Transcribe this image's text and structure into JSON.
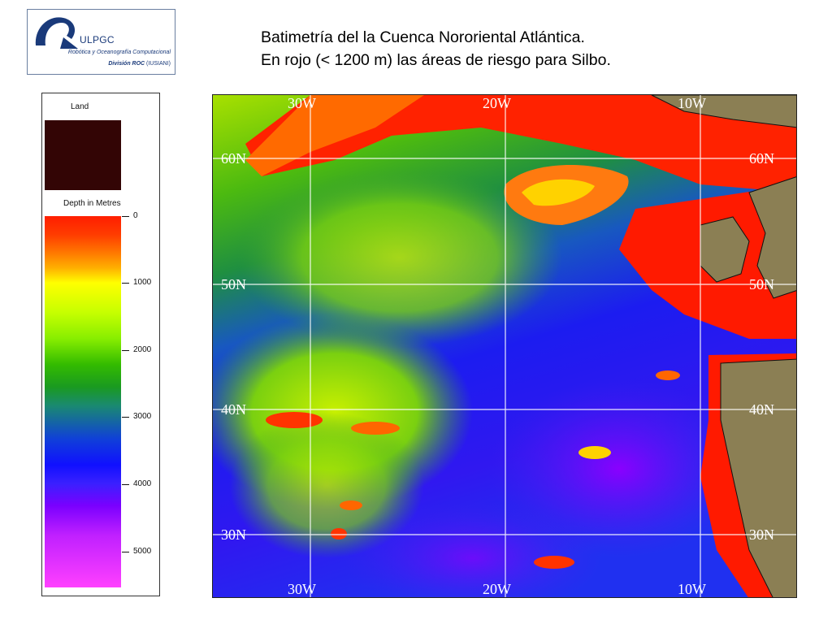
{
  "logo": {
    "name": "ULPGC",
    "subtitle": "Robótica y Oceanografía Computacional",
    "division_bold": "División ROC",
    "division_rest": " (IUSIANI)"
  },
  "title": {
    "line1": "Batimetría del la Cuenca Nororiental Atlántica.",
    "line2": "En rojo (< 1200 m) las áreas de riesgo para Silbo."
  },
  "legend": {
    "land_label": "Land",
    "depth_label": "Depth in Metres",
    "land_color": "#330505",
    "ticks": [
      "0",
      "1000",
      "2000",
      "3000",
      "4000",
      "5000"
    ]
  },
  "map": {
    "longitude_labels": [
      "30W",
      "20W",
      "10W"
    ],
    "latitude_labels": [
      "60N",
      "50N",
      "40N",
      "30N"
    ],
    "land_color": "#8b7f54",
    "risk_color": "#ff1a00"
  }
}
